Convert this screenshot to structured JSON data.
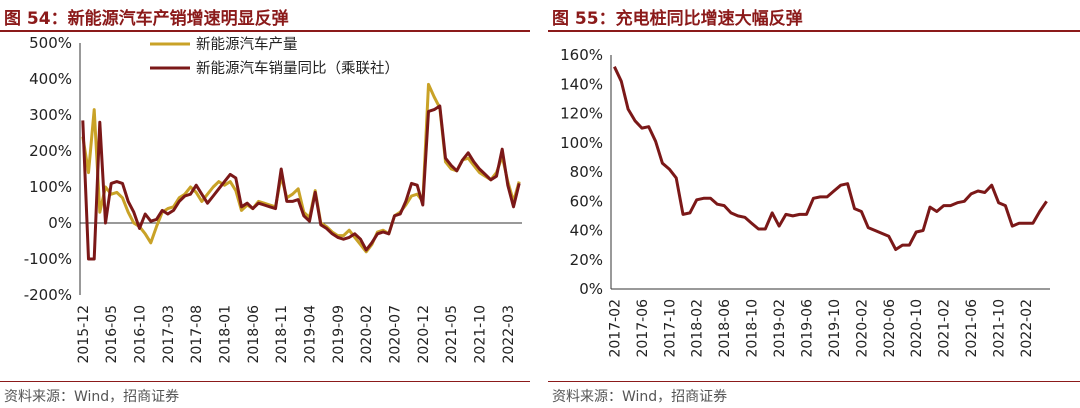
{
  "panels": {
    "left": {
      "title": "图 54：新能源汽车产销增速明显反弹",
      "source": "资料来源：Wind，招商证券"
    },
    "right": {
      "title": "图 55：充电桩同比增速大幅反弹",
      "source": "资料来源：Wind，招商证券"
    }
  },
  "chart_data": [
    {
      "type": "line",
      "title": "图 54：新能源汽车产销增速明显反弹",
      "ylim": [
        -200,
        500
      ],
      "yticks": [
        "-200%",
        "-100%",
        "0%",
        "100%",
        "200%",
        "300%",
        "400%",
        "500%"
      ],
      "xticks": [
        "2015-12",
        "2016-05",
        "2016-10",
        "2017-03",
        "2017-08",
        "2018-01",
        "2018-06",
        "2018-11",
        "2019-04",
        "2019-09",
        "2020-02",
        "2020-07",
        "2020-12",
        "2021-05",
        "2021-10",
        "2022-03"
      ],
      "x_start": "2015-12",
      "legend": [
        "新能源汽车产量",
        "新能源汽车销量同比（乘联社）"
      ],
      "colors": [
        "#C9A227",
        "#7B1818"
      ],
      "series": [
        {
          "name": "新能源汽车产量",
          "values": [
            240,
            140,
            315,
            30,
            100,
            80,
            85,
            70,
            30,
            0,
            -10,
            -30,
            -55,
            -10,
            30,
            40,
            45,
            70,
            80,
            100,
            85,
            60,
            80,
            100,
            115,
            105,
            115,
            90,
            35,
            50,
            40,
            60,
            55,
            50,
            45,
            130,
            70,
            80,
            95,
            30,
            15,
            90,
            0,
            -10,
            -25,
            -35,
            -35,
            -20,
            -40,
            -60,
            -80,
            -60,
            -25,
            -20,
            -30,
            20,
            30,
            50,
            75,
            80,
            60,
            385,
            350,
            320,
            170,
            150,
            145,
            175,
            180,
            160,
            140,
            130,
            120,
            140,
            185,
            115,
            60,
            115
          ]
        },
        {
          "name": "新能源汽车销量同比（乘联社）",
          "values": [
            285,
            -100,
            -100,
            280,
            0,
            110,
            115,
            110,
            60,
            30,
            -15,
            25,
            5,
            10,
            35,
            25,
            35,
            60,
            75,
            80,
            105,
            80,
            55,
            75,
            95,
            115,
            135,
            125,
            45,
            55,
            40,
            55,
            50,
            45,
            40,
            150,
            60,
            60,
            65,
            20,
            5,
            85,
            -5,
            -15,
            -30,
            -40,
            -45,
            -40,
            -30,
            -45,
            -75,
            -55,
            -30,
            -25,
            -30,
            20,
            25,
            60,
            110,
            105,
            50,
            310,
            315,
            325,
            180,
            160,
            145,
            175,
            195,
            170,
            150,
            135,
            120,
            130,
            205,
            105,
            45,
            110
          ]
        }
      ]
    },
    {
      "type": "line",
      "title": "图 55：充电桩同比增速大幅反弹",
      "ylim": [
        0,
        160
      ],
      "yticks": [
        "0%",
        "20%",
        "40%",
        "60%",
        "80%",
        "100%",
        "120%",
        "140%",
        "160%"
      ],
      "xticks": [
        "2017-02",
        "2017-06",
        "2017-10",
        "2018-02",
        "2018-06",
        "2018-10",
        "2019-02",
        "2019-06",
        "2019-10",
        "2020-02",
        "2020-06",
        "2020-10",
        "2021-02",
        "2021-06",
        "2021-10",
        "2022-02"
      ],
      "x_start": "2017-02",
      "colors": [
        "#7B1818"
      ],
      "series": [
        {
          "name": "充电桩同比",
          "values": [
            152,
            142,
            123,
            115,
            110,
            111,
            101,
            86,
            82,
            76,
            51,
            52,
            61,
            62,
            62,
            58,
            57,
            52,
            50,
            49,
            45,
            41,
            41,
            52,
            43,
            51,
            50,
            51,
            51,
            62,
            63,
            63,
            67,
            71,
            72,
            55,
            53,
            42,
            40,
            38,
            36,
            27,
            30,
            30,
            39,
            40,
            56,
            53,
            57,
            57,
            59,
            60,
            65,
            67,
            66,
            71,
            59,
            57,
            43,
            45,
            45,
            45,
            53,
            60
          ]
        }
      ]
    }
  ]
}
